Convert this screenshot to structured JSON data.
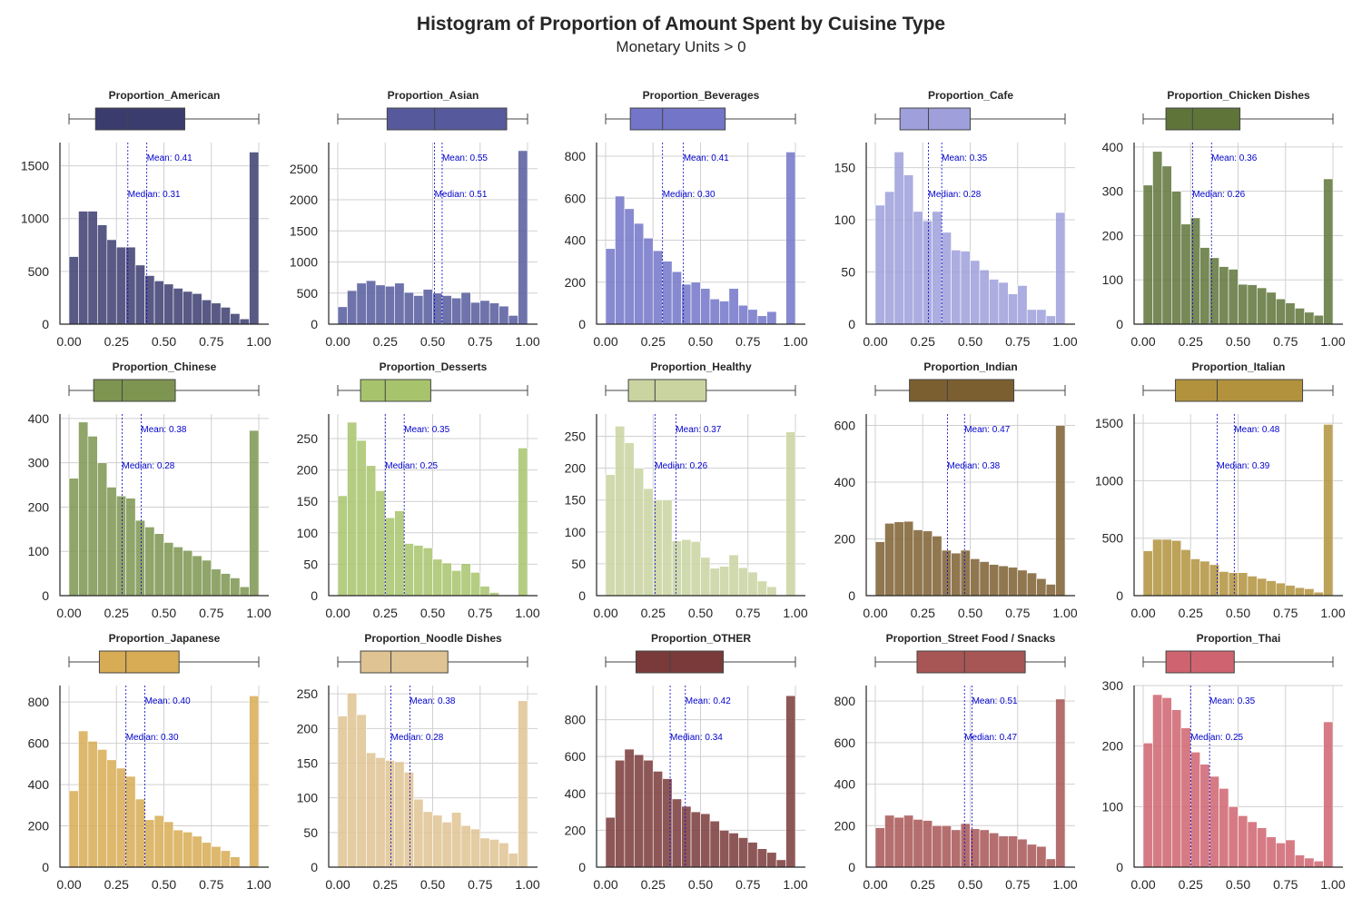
{
  "title": "Histogram of Proportion of Amount Spent by Cuisine Type",
  "subtitle": "Monetary Units > 0",
  "chart_data": {
    "type": "bar",
    "subtype": "histogram-grid-with-boxplots",
    "x_ticks": [
      "0.00",
      "0.25",
      "0.50",
      "0.75",
      "1.00"
    ],
    "xlim": [
      0,
      1
    ],
    "bins": 20,
    "grid": true,
    "mean_line_color": "#0000cc",
    "median_line_color": "#0000cc",
    "annotation_color": "#0000cc",
    "panels": [
      {
        "title": "Proportion_American",
        "color": "#3b3c6e",
        "mean_label": "Mean: 0.41",
        "median_label": "Median: 0.31",
        "mean": 0.41,
        "median": 0.31,
        "box": {
          "q1": 0.14,
          "median": 0.31,
          "q3": 0.61,
          "whisker_low": 0.0,
          "whisker_high": 1.0
        },
        "y_ticks": [
          0,
          500,
          1000,
          1500
        ],
        "ylim": [
          0,
          1720
        ],
        "counts": [
          640,
          1070,
          1070,
          940,
          800,
          730,
          730,
          560,
          460,
          410,
          380,
          340,
          310,
          290,
          230,
          200,
          160,
          100,
          50,
          1630
        ]
      },
      {
        "title": "Proportion_Asian",
        "color": "#565a9c",
        "mean_label": "Mean: 0.55",
        "median_label": "Median: 0.51",
        "mean": 0.55,
        "median": 0.51,
        "box": {
          "q1": 0.26,
          "median": 0.51,
          "q3": 0.89,
          "whisker_low": 0.0,
          "whisker_high": 1.0
        },
        "y_ticks": [
          0,
          500,
          1000,
          1500,
          2000,
          2500
        ],
        "ylim": [
          0,
          2920
        ],
        "counts": [
          280,
          540,
          660,
          700,
          630,
          610,
          660,
          510,
          460,
          560,
          500,
          460,
          420,
          510,
          350,
          380,
          340,
          290,
          140,
          2790
        ]
      },
      {
        "title": "Proportion_Beverages",
        "color": "#7275c8",
        "mean_label": "Mean: 0.41",
        "median_label": "Median: 0.30",
        "mean": 0.41,
        "median": 0.3,
        "box": {
          "q1": 0.13,
          "median": 0.3,
          "q3": 0.63,
          "whisker_low": 0.0,
          "whisker_high": 1.0
        },
        "y_ticks": [
          0,
          200,
          400,
          600,
          800
        ],
        "ylim": [
          0,
          865
        ],
        "counts": [
          360,
          610,
          550,
          480,
          410,
          350,
          300,
          250,
          190,
          200,
          170,
          120,
          110,
          170,
          90,
          70,
          40,
          60,
          0,
          820
        ]
      },
      {
        "title": "Proportion_Cafe",
        "color": "#9e9fdb",
        "mean_label": "Mean: 0.35",
        "median_label": "Median: 0.28",
        "mean": 0.35,
        "median": 0.28,
        "box": {
          "q1": 0.13,
          "median": 0.28,
          "q3": 0.5,
          "whisker_low": 0.0,
          "whisker_high": 1.0
        },
        "y_ticks": [
          0,
          50,
          100,
          150
        ],
        "ylim": [
          0,
          174
        ],
        "counts": [
          114,
          127,
          165,
          143,
          108,
          99,
          108,
          88,
          71,
          70,
          61,
          52,
          43,
          40,
          29,
          37,
          14,
          14,
          8,
          107
        ]
      },
      {
        "title": "Proportion_Chicken Dishes",
        "color": "#5e7438",
        "mean_label": "Mean: 0.36",
        "median_label": "Median: 0.26",
        "mean": 0.36,
        "median": 0.26,
        "box": {
          "q1": 0.12,
          "median": 0.26,
          "q3": 0.51,
          "whisker_low": 0.0,
          "whisker_high": 1.0
        },
        "y_ticks": [
          0,
          100,
          200,
          300,
          400
        ],
        "ylim": [
          0,
          410
        ],
        "counts": [
          314,
          390,
          357,
          300,
          226,
          240,
          173,
          150,
          130,
          124,
          90,
          89,
          82,
          72,
          57,
          48,
          36,
          27,
          20,
          328
        ]
      },
      {
        "title": "Proportion_Chinese",
        "color": "#7d9550",
        "mean_label": "Mean: 0.38",
        "median_label": "Median: 0.28",
        "mean": 0.38,
        "median": 0.28,
        "box": {
          "q1": 0.13,
          "median": 0.28,
          "q3": 0.56,
          "whisker_low": 0.0,
          "whisker_high": 1.0
        },
        "y_ticks": [
          0,
          100,
          200,
          300,
          400
        ],
        "ylim": [
          0,
          410
        ],
        "counts": [
          265,
          392,
          360,
          300,
          245,
          225,
          220,
          170,
          155,
          140,
          120,
          110,
          102,
          90,
          80,
          60,
          50,
          40,
          20,
          373
        ]
      },
      {
        "title": "Proportion_Desserts",
        "color": "#a7c46c",
        "mean_label": "Mean: 0.35",
        "median_label": "Median: 0.25",
        "mean": 0.35,
        "median": 0.25,
        "box": {
          "q1": 0.12,
          "median": 0.25,
          "q3": 0.49,
          "whisker_low": 0.0,
          "whisker_high": 1.0
        },
        "y_ticks": [
          0,
          50,
          100,
          150,
          200,
          250
        ],
        "ylim": [
          0,
          289
        ],
        "counts": [
          159,
          276,
          247,
          207,
          167,
          124,
          135,
          83,
          80,
          76,
          58,
          52,
          40,
          51,
          37,
          15,
          5,
          0,
          0,
          235
        ]
      },
      {
        "title": "Proportion_Healthy",
        "color": "#c9d4a0",
        "mean_label": "Mean: 0.37",
        "median_label": "Median: 0.26",
        "mean": 0.37,
        "median": 0.26,
        "box": {
          "q1": 0.12,
          "median": 0.26,
          "q3": 0.53,
          "whisker_low": 0.0,
          "whisker_high": 1.0
        },
        "y_ticks": [
          0,
          50,
          100,
          150,
          200,
          250
        ],
        "ylim": [
          0,
          285
        ],
        "counts": [
          190,
          266,
          240,
          200,
          168,
          150,
          150,
          86,
          88,
          85,
          60,
          43,
          46,
          64,
          44,
          37,
          23,
          14,
          0,
          257
        ]
      },
      {
        "title": "Proportion_Indian",
        "color": "#7c5f30",
        "mean_label": "Mean: 0.47",
        "median_label": "Median: 0.38",
        "mean": 0.47,
        "median": 0.38,
        "box": {
          "q1": 0.18,
          "median": 0.38,
          "q3": 0.73,
          "whisker_low": 0.0,
          "whisker_high": 1.0
        },
        "y_ticks": [
          0,
          200,
          400,
          600
        ],
        "ylim": [
          0,
          640
        ],
        "counts": [
          190,
          255,
          260,
          262,
          232,
          228,
          210,
          160,
          150,
          160,
          130,
          120,
          110,
          105,
          100,
          90,
          80,
          60,
          40,
          600
        ]
      },
      {
        "title": "Proportion_Italian",
        "color": "#b2923c",
        "mean_label": "Mean: 0.48",
        "median_label": "Median: 0.39",
        "mean": 0.48,
        "median": 0.39,
        "box": {
          "q1": 0.17,
          "median": 0.39,
          "q3": 0.84,
          "whisker_low": 0.0,
          "whisker_high": 1.0
        },
        "y_ticks": [
          0,
          500,
          1000,
          1500
        ],
        "ylim": [
          0,
          1580
        ],
        "counts": [
          390,
          490,
          490,
          480,
          400,
          320,
          300,
          270,
          210,
          200,
          200,
          170,
          150,
          130,
          110,
          90,
          70,
          60,
          30,
          1490
        ]
      },
      {
        "title": "Proportion_Japanese",
        "color": "#d7ac54",
        "mean_label": "Mean: 0.40",
        "median_label": "Median: 0.30",
        "mean": 0.4,
        "median": 0.3,
        "box": {
          "q1": 0.16,
          "median": 0.3,
          "q3": 0.58,
          "whisker_low": 0.0,
          "whisker_high": 1.0
        },
        "y_ticks": [
          0,
          200,
          400,
          600,
          800
        ],
        "ylim": [
          0,
          880
        ],
        "counts": [
          370,
          660,
          610,
          570,
          520,
          480,
          440,
          330,
          230,
          250,
          220,
          180,
          170,
          150,
          120,
          100,
          80,
          50,
          0,
          830
        ]
      },
      {
        "title": "Proportion_Noodle Dishes",
        "color": "#dfc393",
        "mean_label": "Mean: 0.38",
        "median_label": "Median: 0.28",
        "mean": 0.38,
        "median": 0.28,
        "box": {
          "q1": 0.12,
          "median": 0.28,
          "q3": 0.58,
          "whisker_low": 0.0,
          "whisker_high": 1.0
        },
        "y_ticks": [
          0,
          50,
          100,
          150,
          200,
          250
        ],
        "ylim": [
          0,
          262
        ],
        "counts": [
          218,
          251,
          220,
          165,
          158,
          154,
          152,
          137,
          98,
          80,
          75,
          65,
          79,
          60,
          55,
          42,
          40,
          35,
          20,
          240
        ]
      },
      {
        "title": "Proportion_OTHER",
        "color": "#7a3a3a",
        "mean_label": "Mean: 0.42",
        "median_label": "Median: 0.34",
        "mean": 0.42,
        "median": 0.34,
        "box": {
          "q1": 0.16,
          "median": 0.34,
          "q3": 0.62,
          "whisker_low": 0.0,
          "whisker_high": 1.0
        },
        "y_ticks": [
          0,
          200,
          400,
          600,
          800
        ],
        "ylim": [
          0,
          985
        ],
        "counts": [
          270,
          580,
          640,
          610,
          580,
          520,
          480,
          370,
          330,
          300,
          290,
          250,
          200,
          185,
          160,
          135,
          100,
          80,
          40,
          930
        ]
      },
      {
        "title": "Proportion_Street Food / Snacks",
        "color": "#a85555",
        "mean_label": "Mean: 0.51",
        "median_label": "Median: 0.47",
        "mean": 0.51,
        "median": 0.47,
        "box": {
          "q1": 0.22,
          "median": 0.47,
          "q3": 0.79,
          "whisker_low": 0.0,
          "whisker_high": 1.0
        },
        "y_ticks": [
          0,
          200,
          400,
          600,
          800
        ],
        "ylim": [
          0,
          875
        ],
        "counts": [
          190,
          250,
          240,
          250,
          230,
          225,
          200,
          200,
          180,
          210,
          185,
          180,
          165,
          150,
          150,
          135,
          110,
          100,
          40,
          810
        ]
      },
      {
        "title": "Proportion_Thai",
        "color": "#cf6470",
        "mean_label": "Mean: 0.35",
        "median_label": "Median: 0.25",
        "mean": 0.35,
        "median": 0.25,
        "box": {
          "q1": 0.12,
          "median": 0.25,
          "q3": 0.48,
          "whisker_low": 0.0,
          "whisker_high": 1.0
        },
        "y_ticks": [
          0,
          100,
          200,
          300
        ],
        "ylim": [
          0,
          300
        ],
        "counts": [
          205,
          285,
          280,
          260,
          230,
          190,
          170,
          150,
          130,
          100,
          85,
          75,
          65,
          50,
          40,
          45,
          20,
          15,
          10,
          240
        ]
      }
    ]
  }
}
